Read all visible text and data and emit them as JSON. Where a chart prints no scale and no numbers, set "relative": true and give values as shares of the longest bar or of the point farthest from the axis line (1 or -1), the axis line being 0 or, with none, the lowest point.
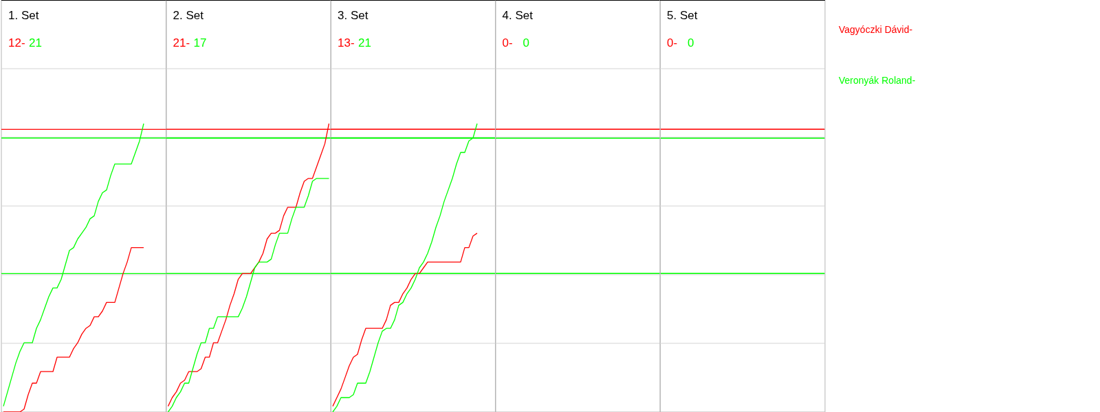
{
  "chart_data": [
    {
      "type": "line",
      "title": "1. Set",
      "annotations": [
        "12-",
        "21"
      ],
      "categories": [
        null,
        null,
        null,
        null,
        null,
        null,
        null,
        null,
        null,
        null,
        null,
        null,
        null,
        null,
        null,
        null,
        null,
        null,
        null,
        null,
        null,
        null,
        null,
        null,
        null,
        null,
        null,
        null,
        null,
        null,
        null,
        null,
        null,
        null,
        null,
        null,
        null,
        null,
        null,
        null
      ],
      "relative": true,
      "marker": "none",
      "line_style": "solid",
      "series": [
        {
          "color": "#ff0000",
          "values": [
            0,
            0,
            0,
            0,
            0,
            0.01,
            0.06,
            0.1,
            0.1,
            0.14,
            0.14,
            0.14,
            0.14,
            0.19,
            0.19,
            0.19,
            0.19,
            0.22,
            0.24,
            0.27,
            0.29,
            0.3,
            0.33,
            0.33,
            0.35,
            0.38,
            0.38,
            0.38,
            0.43,
            0.48,
            0.52,
            0.57,
            0.57,
            0.57,
            0.57,
            null,
            null,
            null,
            null,
            null
          ]
        },
        {
          "color": "#00ff00",
          "values": [
            0.02,
            0.07,
            0.12,
            0.17,
            0.21,
            0.24,
            0.24,
            0.24,
            0.29,
            0.32,
            0.36,
            0.4,
            0.43,
            0.43,
            0.46,
            0.51,
            0.56,
            0.57,
            0.6,
            0.62,
            0.64,
            0.67,
            0.68,
            0.73,
            0.76,
            0.77,
            0.82,
            0.86,
            0.86,
            0.86,
            0.86,
            0.86,
            0.9,
            0.94,
            1,
            null,
            null,
            null,
            null,
            null
          ]
        }
      ],
      "ref_lines": [
        {
          "axis": "y",
          "value": 0.98,
          "color": "#ff0000"
        },
        {
          "axis": "y",
          "value": 0.95,
          "color": "#00ff00"
        },
        {
          "axis": "y",
          "value": 0.48,
          "color": "#00ff00"
        }
      ]
    },
    {
      "type": "line",
      "title": "2. Set",
      "annotations": [
        "21-",
        "17"
      ],
      "categories": [
        null,
        null,
        null,
        null,
        null,
        null,
        null,
        null,
        null,
        null,
        null,
        null,
        null,
        null,
        null,
        null,
        null,
        null,
        null,
        null,
        null,
        null,
        null,
        null,
        null,
        null,
        null,
        null,
        null,
        null,
        null,
        null,
        null,
        null,
        null,
        null,
        null,
        null,
        null,
        null
      ],
      "relative": true,
      "marker": "none",
      "line_style": "solid",
      "series": [
        {
          "color": "#ff0000",
          "values": [
            0.02,
            0.05,
            0.07,
            0.1,
            0.11,
            0.14,
            0.14,
            0.14,
            0.15,
            0.19,
            0.19,
            0.24,
            0.24,
            0.28,
            0.32,
            0.37,
            0.41,
            0.46,
            0.48,
            0.48,
            0.48,
            0.5,
            0.52,
            0.55,
            0.6,
            0.62,
            0.62,
            0.63,
            0.68,
            0.71,
            0.71,
            0.71,
            0.76,
            0.8,
            0.81,
            0.81,
            0.85,
            0.89,
            0.93,
            1
          ]
        },
        {
          "color": "#00ff00",
          "values": [
            0,
            0.02,
            0.05,
            0.07,
            0.1,
            0.1,
            0.15,
            0.2,
            0.24,
            0.24,
            0.29,
            0.29,
            0.33,
            0.33,
            0.33,
            0.33,
            0.33,
            0.33,
            0.36,
            0.4,
            0.45,
            0.5,
            0.52,
            0.52,
            0.52,
            0.53,
            0.58,
            0.62,
            0.62,
            0.62,
            0.67,
            0.71,
            0.71,
            0.71,
            0.75,
            0.8,
            0.81,
            0.81,
            0.81,
            0.81
          ]
        }
      ],
      "ref_lines": [
        {
          "axis": "y",
          "value": 0.98,
          "color": "#ff0000"
        },
        {
          "axis": "y",
          "value": 0.95,
          "color": "#00ff00"
        },
        {
          "axis": "y",
          "value": 0.48,
          "color": "#00ff00"
        }
      ]
    },
    {
      "type": "line",
      "title": "3. Set",
      "annotations": [
        "13-",
        "21"
      ],
      "categories": [
        null,
        null,
        null,
        null,
        null,
        null,
        null,
        null,
        null,
        null,
        null,
        null,
        null,
        null,
        null,
        null,
        null,
        null,
        null,
        null,
        null,
        null,
        null,
        null,
        null,
        null,
        null,
        null,
        null,
        null,
        null,
        null,
        null,
        null,
        null,
        null,
        null,
        null,
        null,
        null
      ],
      "relative": true,
      "marker": "none",
      "line_style": "solid",
      "series": [
        {
          "color": "#ff0000",
          "values": [
            0.02,
            0.05,
            0.08,
            0.12,
            0.16,
            0.19,
            0.2,
            0.25,
            0.29,
            0.29,
            0.29,
            0.29,
            0.29,
            0.32,
            0.37,
            0.38,
            0.38,
            0.41,
            0.43,
            0.46,
            0.48,
            0.48,
            0.5,
            0.52,
            0.52,
            0.52,
            0.52,
            0.52,
            0.52,
            0.52,
            0.52,
            0.52,
            0.57,
            0.57,
            0.61,
            0.62,
            null,
            null,
            null,
            null
          ]
        },
        {
          "color": "#00ff00",
          "values": [
            0,
            0.02,
            0.05,
            0.05,
            0.05,
            0.06,
            0.1,
            0.1,
            0.1,
            0.14,
            0.19,
            0.24,
            0.28,
            0.29,
            0.29,
            0.32,
            0.37,
            0.38,
            0.41,
            0.43,
            0.46,
            0.5,
            0.52,
            0.55,
            0.59,
            0.64,
            0.68,
            0.73,
            0.77,
            0.81,
            0.86,
            0.9,
            0.9,
            0.94,
            0.95,
            1,
            null,
            null,
            null,
            null
          ]
        }
      ],
      "ref_lines": [
        {
          "axis": "y",
          "value": 0.98,
          "color": "#ff0000"
        },
        {
          "axis": "y",
          "value": 0.95,
          "color": "#00ff00"
        },
        {
          "axis": "y",
          "value": 0.48,
          "color": "#00ff00"
        }
      ]
    },
    {
      "type": "other",
      "title": "4. Set",
      "annotations": [
        "0-",
        "0"
      ],
      "series": [
        {
          "color": "#ff0000"
        },
        {
          "color": "#00ff00"
        }
      ]
    },
    {
      "type": "other",
      "title": "5. Set",
      "annotations": [
        "0-",
        "0"
      ],
      "series": [
        {
          "name": "Vagyóczki Dávid-",
          "color": "#ff0000"
        },
        {
          "name": "Veronyák Roland-",
          "color": "#00ff00"
        }
      ]
    }
  ]
}
